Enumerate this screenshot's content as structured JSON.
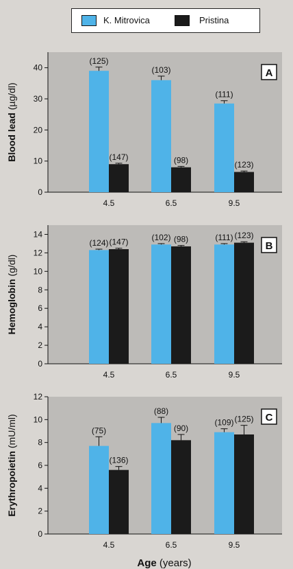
{
  "colors": {
    "k_mitrovica": "#4fb3e8",
    "pristina": "#1b1b1b",
    "panel_bg": "#bdbbb8",
    "page_bg": "#d9d6d2"
  },
  "legend": {
    "series_1": "K. Mitrovica",
    "series_2": "Pristina"
  },
  "xlabel": {
    "bold": "Age",
    "rest": " (years)"
  },
  "chart_data": [
    {
      "type": "bar",
      "panel_label": "A",
      "ylabel": "Blood lead (µg/dl)",
      "ylabel_bold": "Blood lead",
      "ylabel_rest": " (µg/dl)",
      "categories": [
        "4.5",
        "6.5",
        "9.5"
      ],
      "ylim": [
        0,
        45
      ],
      "yticks": [
        0,
        10,
        20,
        30,
        40
      ],
      "series": [
        {
          "name": "K. Mitrovica",
          "values": [
            39,
            36,
            28.5
          ],
          "errors": [
            1.2,
            1.3,
            0.9
          ],
          "n": [
            "(125)",
            "(103)",
            "(111)"
          ]
        },
        {
          "name": "Pristina",
          "values": [
            9,
            8,
            6.5
          ],
          "errors": [
            0.3,
            0.3,
            0.3
          ],
          "n": [
            "(147)",
            "(98)",
            "(123)"
          ]
        }
      ]
    },
    {
      "type": "bar",
      "panel_label": "B",
      "ylabel": "Hemoglobin (g/dl)",
      "ylabel_bold": "Hemoglobin",
      "ylabel_rest": " (g/dl)",
      "categories": [
        "4.5",
        "6.5",
        "9.5"
      ],
      "ylim": [
        0,
        15
      ],
      "yticks": [
        0,
        2,
        4,
        6,
        8,
        10,
        12,
        14
      ],
      "series": [
        {
          "name": "K. Mitrovica",
          "values": [
            12.3,
            12.9,
            12.9
          ],
          "errors": [
            0.1,
            0.1,
            0.1
          ],
          "n": [
            "(124)",
            "(102)",
            "(111)"
          ]
        },
        {
          "name": "Pristina",
          "values": [
            12.4,
            12.7,
            13.1
          ],
          "errors": [
            0.1,
            0.1,
            0.1
          ],
          "n": [
            "(147)",
            "(98)",
            "(123)"
          ]
        }
      ]
    },
    {
      "type": "bar",
      "panel_label": "C",
      "ylabel": "Erythropoietin (mU/ml)",
      "ylabel_bold": "Erythropoietin",
      "ylabel_rest": " (mU/ml)",
      "categories": [
        "4.5",
        "6.5",
        "9.5"
      ],
      "ylim": [
        0,
        12
      ],
      "yticks": [
        0,
        2,
        4,
        6,
        8,
        10,
        12
      ],
      "series": [
        {
          "name": "K. Mitrovica",
          "values": [
            7.7,
            9.7,
            8.9
          ],
          "errors": [
            0.8,
            0.5,
            0.3
          ],
          "n": [
            "(75)",
            "(88)",
            "(109)"
          ]
        },
        {
          "name": "Pristina",
          "values": [
            5.6,
            8.2,
            8.7
          ],
          "errors": [
            0.3,
            0.5,
            0.8
          ],
          "n": [
            "(136)",
            "(90)",
            "(125)"
          ]
        }
      ]
    }
  ]
}
